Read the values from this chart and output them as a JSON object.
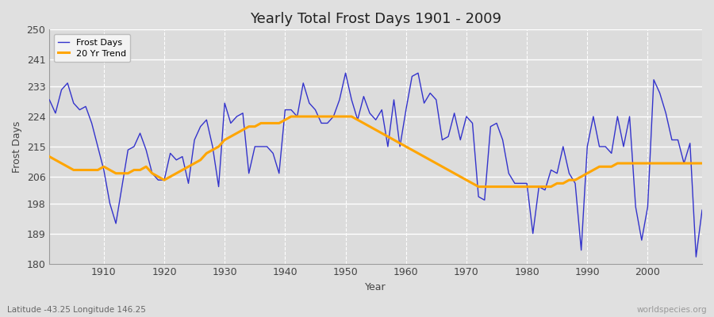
{
  "title": "Yearly Total Frost Days 1901 - 2009",
  "xlabel": "Year",
  "ylabel": "Frost Days",
  "subtitle": "Latitude -43.25 Longitude 146.25",
  "watermark": "worldspecies.org",
  "ylim": [
    180,
    250
  ],
  "yticks": [
    180,
    189,
    198,
    206,
    215,
    224,
    233,
    241,
    250
  ],
  "line_color": "#3333cc",
  "trend_color": "#FFA500",
  "bg_color": "#e0e0e0",
  "plot_bg_color": "#dcdcdc",
  "years": [
    1901,
    1902,
    1903,
    1904,
    1905,
    1906,
    1907,
    1908,
    1909,
    1910,
    1911,
    1912,
    1913,
    1914,
    1915,
    1916,
    1917,
    1918,
    1919,
    1920,
    1921,
    1922,
    1923,
    1924,
    1925,
    1926,
    1927,
    1928,
    1929,
    1930,
    1931,
    1932,
    1933,
    1934,
    1935,
    1936,
    1937,
    1938,
    1939,
    1940,
    1941,
    1942,
    1943,
    1944,
    1945,
    1946,
    1947,
    1948,
    1949,
    1950,
    1951,
    1952,
    1953,
    1954,
    1955,
    1956,
    1957,
    1958,
    1959,
    1960,
    1961,
    1962,
    1963,
    1964,
    1965,
    1966,
    1967,
    1968,
    1969,
    1970,
    1971,
    1972,
    1973,
    1974,
    1975,
    1976,
    1977,
    1978,
    1979,
    1980,
    1981,
    1982,
    1983,
    1984,
    1985,
    1986,
    1987,
    1988,
    1989,
    1990,
    1991,
    1992,
    1993,
    1994,
    1995,
    1996,
    1997,
    1998,
    1999,
    2000,
    2001,
    2002,
    2003,
    2004,
    2005,
    2006,
    2007,
    2008,
    2009
  ],
  "frost_days": [
    229,
    225,
    232,
    234,
    228,
    226,
    227,
    222,
    215,
    208,
    198,
    192,
    203,
    214,
    215,
    219,
    214,
    207,
    205,
    205,
    213,
    211,
    212,
    204,
    217,
    221,
    223,
    215,
    203,
    228,
    222,
    224,
    225,
    207,
    215,
    215,
    215,
    213,
    207,
    226,
    226,
    224,
    234,
    228,
    226,
    222,
    222,
    224,
    229,
    237,
    229,
    223,
    230,
    225,
    223,
    226,
    215,
    229,
    215,
    226,
    236,
    237,
    228,
    231,
    229,
    217,
    218,
    225,
    217,
    224,
    222,
    200,
    199,
    221,
    222,
    217,
    207,
    204,
    204,
    204,
    189,
    203,
    202,
    208,
    207,
    215,
    207,
    204,
    184,
    215,
    224,
    215,
    215,
    213,
    224,
    215,
    224,
    197,
    187,
    197,
    235,
    231,
    225,
    217,
    217,
    210,
    216,
    182,
    196
  ],
  "trend_years": [
    1901,
    1902,
    1903,
    1904,
    1905,
    1906,
    1907,
    1908,
    1909,
    1910,
    1911,
    1912,
    1913,
    1914,
    1915,
    1916,
    1917,
    1918,
    1919,
    1920,
    1921,
    1922,
    1923,
    1924,
    1925,
    1926,
    1927,
    1928,
    1929,
    1930,
    1931,
    1932,
    1933,
    1934,
    1935,
    1936,
    1937,
    1938,
    1939,
    1940,
    1941,
    1942,
    1943,
    1944,
    1945,
    1946,
    1947,
    1948,
    1949,
    1950,
    1951,
    1952,
    1953,
    1954,
    1955,
    1956,
    1957,
    1958,
    1959,
    1960,
    1961,
    1962,
    1963,
    1964,
    1965,
    1966,
    1967,
    1968,
    1969,
    1970,
    1971,
    1972,
    1973,
    1974,
    1975,
    1976,
    1977,
    1978,
    1979,
    1980,
    1981,
    1982,
    1983,
    1984,
    1985,
    1986,
    1987,
    1988,
    1989,
    1990,
    1991,
    1992,
    1993,
    1994,
    1995,
    1996,
    1997,
    1998,
    1999,
    2000,
    2001,
    2002,
    2003,
    2004,
    2005,
    2006,
    2007,
    2008,
    2009
  ],
  "trend_values": [
    212,
    211,
    210,
    209,
    208,
    208,
    208,
    208,
    208,
    209,
    208,
    207,
    207,
    207,
    208,
    208,
    209,
    207,
    206,
    205,
    206,
    207,
    208,
    209,
    210,
    211,
    213,
    214,
    215,
    217,
    218,
    219,
    220,
    221,
    221,
    222,
    222,
    222,
    222,
    223,
    224,
    224,
    224,
    224,
    224,
    224,
    224,
    224,
    224,
    224,
    224,
    223,
    222,
    221,
    220,
    219,
    218,
    217,
    216,
    215,
    214,
    213,
    212,
    211,
    210,
    209,
    208,
    207,
    206,
    205,
    204,
    203,
    203,
    203,
    203,
    203,
    203,
    203,
    203,
    203,
    203,
    203,
    203,
    203,
    204,
    204,
    205,
    205,
    206,
    207,
    208,
    209,
    209,
    209,
    210,
    210,
    210,
    210,
    210,
    210,
    210,
    210,
    210,
    210,
    210,
    210,
    210,
    210,
    210
  ]
}
